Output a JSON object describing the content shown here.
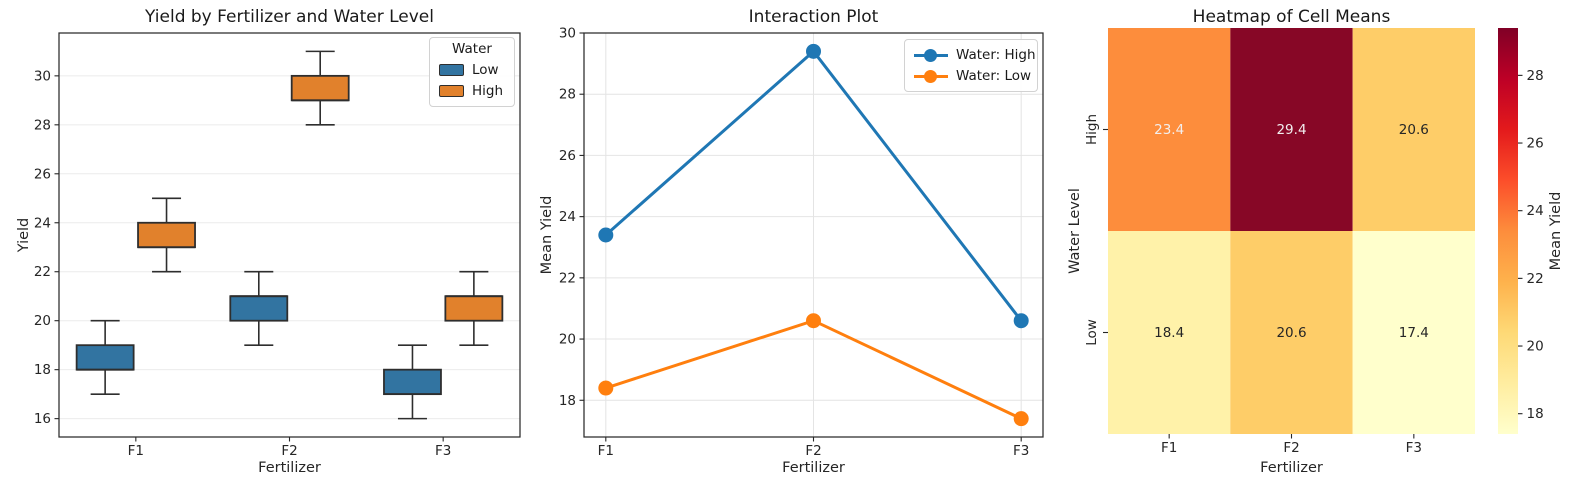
{
  "figure": {
    "background": "#ffffff"
  },
  "chart_data": [
    {
      "type": "box",
      "title": "Yield by Fertilizer and Water Level",
      "xlabel": "Fertilizer",
      "ylabel": "Yield",
      "categories": [
        "F1",
        "F2",
        "F3"
      ],
      "ylim": [
        15.25,
        31.75
      ],
      "yticks": [
        16,
        18,
        20,
        22,
        24,
        26,
        28,
        30
      ],
      "grid": "horizontal",
      "legend": {
        "title": "Water",
        "position": "upper right",
        "entries": [
          {
            "label": "Low",
            "color": "#3274a1"
          },
          {
            "label": "High",
            "color": "#e1812c"
          }
        ]
      },
      "series": [
        {
          "name": "Low",
          "color": "#3274a1",
          "boxes": [
            {
              "whislo": 17,
              "q1": 18,
              "med": 18,
              "q3": 19,
              "whishi": 20
            },
            {
              "whislo": 19,
              "q1": 20,
              "med": 21,
              "q3": 21,
              "whishi": 22
            },
            {
              "whislo": 16,
              "q1": 17,
              "med": 17,
              "q3": 18,
              "whishi": 19
            }
          ]
        },
        {
          "name": "High",
          "color": "#e1812c",
          "boxes": [
            {
              "whislo": 22,
              "q1": 23,
              "med": 23,
              "q3": 24,
              "whishi": 25
            },
            {
              "whislo": 28,
              "q1": 29,
              "med": 29,
              "q3": 30,
              "whishi": 31
            },
            {
              "whislo": 19,
              "q1": 20,
              "med": 21,
              "q3": 21,
              "whishi": 22
            }
          ]
        }
      ]
    },
    {
      "type": "line",
      "title": "Interaction Plot",
      "xlabel": "Fertilizer",
      "ylabel": "Mean Yield",
      "categories": [
        "F1",
        "F2",
        "F3"
      ],
      "ylim": [
        16.8,
        30.0
      ],
      "yticks": [
        18,
        20,
        22,
        24,
        26,
        28,
        30
      ],
      "grid": "both",
      "legend": {
        "position": "upper right",
        "entries": [
          {
            "label": "Water: High",
            "color": "#1f77b4"
          },
          {
            "label": "Water: Low",
            "color": "#ff7f0e"
          }
        ]
      },
      "series": [
        {
          "name": "Water: High",
          "color": "#1f77b4",
          "values": [
            23.4,
            29.4,
            20.6
          ]
        },
        {
          "name": "Water: Low",
          "color": "#ff7f0e",
          "values": [
            18.4,
            20.6,
            17.4
          ]
        }
      ]
    },
    {
      "type": "heatmap",
      "title": "Heatmap of Cell Means",
      "xlabel": "Fertilizer",
      "ylabel": "Water Level",
      "columns": [
        "F1",
        "F2",
        "F3"
      ],
      "rows": [
        "High",
        "Low"
      ],
      "values": [
        [
          23.4,
          29.4,
          20.6
        ],
        [
          18.4,
          20.6,
          17.4
        ]
      ],
      "cell_colors": [
        [
          "#fd8d3c",
          "#870726",
          "#fecd68"
        ],
        [
          "#fff2a9",
          "#fecd68",
          "#ffffcc"
        ]
      ],
      "text_colors": [
        [
          "#f2eeee",
          "#f2eeee",
          "#262626"
        ],
        [
          "#262626",
          "#262626",
          "#262626"
        ]
      ],
      "colorbar": {
        "label": "Mean Yield",
        "vmin": 17.4,
        "vmax": 29.4,
        "ticks": [
          18,
          20,
          22,
          24,
          26,
          28
        ],
        "gradient_bottom_to_top": [
          "#ffffcc",
          "#ffeda0",
          "#fed976",
          "#feb24c",
          "#fd8d3c",
          "#fc4e2a",
          "#e31a1c",
          "#bd0026",
          "#800026"
        ]
      }
    }
  ]
}
